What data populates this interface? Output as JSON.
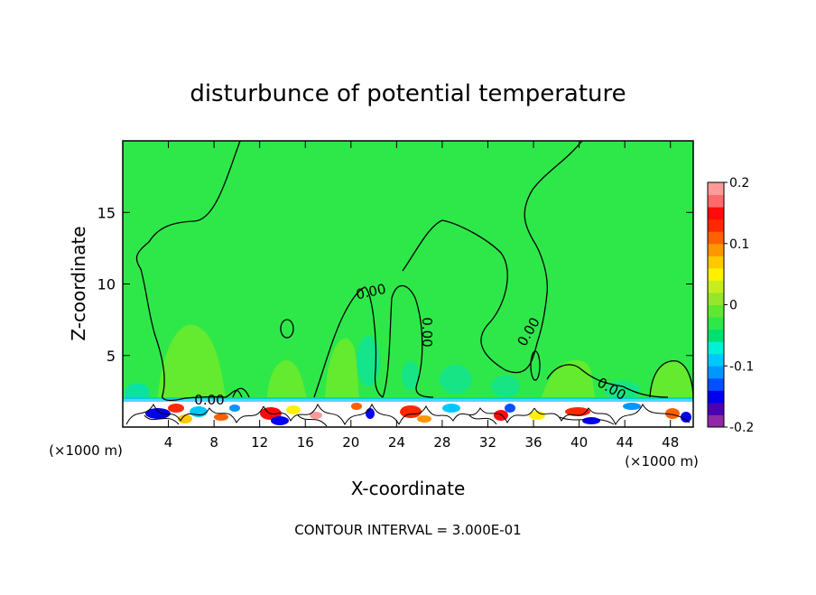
{
  "chart_data": {
    "type": "heatmap",
    "title": "disturbunce of potential temperature",
    "xlabel": "X-coordinate",
    "ylabel": "Z-coordinate",
    "x_unit_left": "(×1000 m)",
    "x_unit_right": "(×1000 m)",
    "xlim": [
      0,
      50
    ],
    "ylim": [
      0,
      20
    ],
    "x_ticks": [
      4,
      8,
      12,
      16,
      20,
      24,
      28,
      32,
      36,
      40,
      44,
      48
    ],
    "y_ticks": [
      5,
      10,
      15
    ],
    "contour_label": "0.00",
    "contour_interval_text": "CONTOUR INTERVAL = 3.000E-01",
    "colorbar": {
      "min": -0.2,
      "max": 0.2,
      "tick_labels": [
        "0.2",
        "0.1",
        "0",
        "-0.1",
        "-0.2"
      ],
      "colors": [
        "#8e2aa5",
        "#4b00b4",
        "#0000ee",
        "#0050ff",
        "#0096ff",
        "#00c8ff",
        "#00f0d8",
        "#00e070",
        "#2ee84a",
        "#5ee830",
        "#96e62a",
        "#c6ee1e",
        "#fff000",
        "#ffc800",
        "#ff9600",
        "#ff6000",
        "#ff2800",
        "#ff0a0a",
        "#ff6a6a",
        "#ff9a9a"
      ]
    }
  }
}
